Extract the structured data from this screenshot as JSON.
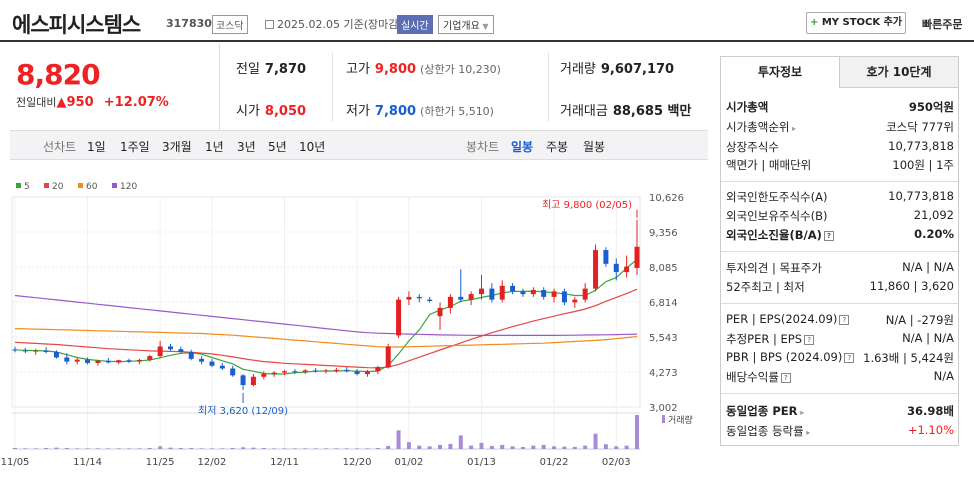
{
  "header": {
    "title": "에스피시스템스",
    "code": "317830",
    "market": "코스닥",
    "date": "2025.02.05 기준(장마감)",
    "realtime": "실시간",
    "overview": "기업개요",
    "mystock_plus": "+",
    "mystock": "MY STOCK 추가",
    "quick_order": "빠른주문"
  },
  "price": {
    "current": "8,820",
    "change_label": "전일대비",
    "change_arrow": "▲",
    "change_value": "950",
    "change_pct": "+12.07%"
  },
  "stats": {
    "prev_label": "전일",
    "prev": "7,870",
    "open_label": "시가",
    "open": "8,050",
    "high_label": "고가",
    "high": "9,800",
    "upper_limit": "(상한가 10,230)",
    "low_label": "저가",
    "low": "7,800",
    "lower_limit": "(하한가 5,510)",
    "volume_label": "거래량",
    "volume": "9,607,170",
    "amount_label": "거래대금",
    "amount": "88,685 백만"
  },
  "periods": {
    "line_label": "선차트",
    "line_items": [
      "1일",
      "1주일",
      "3개월",
      "1년",
      "3년",
      "5년",
      "10년"
    ],
    "candle_label": "봉차트",
    "candle_items": [
      "일봉",
      "주봉",
      "월봉"
    ],
    "selected": "일봉"
  },
  "colors": {
    "up": "#e22222",
    "down": "#1a5fd0",
    "ma5": "#3aa63a",
    "ma20": "#e84545",
    "ma60": "#f08c1e",
    "ma120": "#9a59c9"
  },
  "chart_data": {
    "type": "candlestick",
    "legend": [
      "5",
      "20",
      "60",
      "120"
    ],
    "y_ticks": [
      "10,626",
      "9,356",
      "8,085",
      "6,814",
      "5,543",
      "4,273",
      "3,002"
    ],
    "ylim": [
      3002,
      10626
    ],
    "x_ticks": [
      "11/05",
      "11/14",
      "11/25",
      "12/02",
      "12/11",
      "12/20",
      "01/02",
      "01/13",
      "01/22",
      "02/03"
    ],
    "high_annotation": "최고 9,800 (02/05)",
    "low_annotation": "최저 3,620 (12/09)",
    "volume_label": "거래량",
    "candles": [
      {
        "o": 5090,
        "h": 5190,
        "l": 4990,
        "c": 5060
      },
      {
        "o": 5060,
        "h": 5150,
        "l": 4960,
        "c": 5020
      },
      {
        "o": 5020,
        "h": 5120,
        "l": 4900,
        "c": 5050
      },
      {
        "o": 5050,
        "h": 5180,
        "l": 4950,
        "c": 5000
      },
      {
        "o": 5000,
        "h": 5060,
        "l": 4760,
        "c": 4800
      },
      {
        "o": 4800,
        "h": 4950,
        "l": 4550,
        "c": 4650
      },
      {
        "o": 4650,
        "h": 4800,
        "l": 4550,
        "c": 4720
      },
      {
        "o": 4720,
        "h": 4800,
        "l": 4550,
        "c": 4600
      },
      {
        "o": 4600,
        "h": 4720,
        "l": 4500,
        "c": 4680
      },
      {
        "o": 4680,
        "h": 4780,
        "l": 4580,
        "c": 4620
      },
      {
        "o": 4620,
        "h": 4720,
        "l": 4560,
        "c": 4700
      },
      {
        "o": 4700,
        "h": 4760,
        "l": 4600,
        "c": 4650
      },
      {
        "o": 4650,
        "h": 4750,
        "l": 4550,
        "c": 4710
      },
      {
        "o": 4710,
        "h": 4900,
        "l": 4650,
        "c": 4850
      },
      {
        "o": 4850,
        "h": 5400,
        "l": 4800,
        "c": 5200
      },
      {
        "o": 5200,
        "h": 5300,
        "l": 5050,
        "c": 5100
      },
      {
        "o": 5100,
        "h": 5200,
        "l": 4950,
        "c": 5000
      },
      {
        "o": 5000,
        "h": 5080,
        "l": 4700,
        "c": 4750
      },
      {
        "o": 4750,
        "h": 4850,
        "l": 4550,
        "c": 4650
      },
      {
        "o": 4650,
        "h": 4750,
        "l": 4450,
        "c": 4500
      },
      {
        "o": 4500,
        "h": 4600,
        "l": 4350,
        "c": 4400
      },
      {
        "o": 4400,
        "h": 4500,
        "l": 4100,
        "c": 4150
      },
      {
        "o": 4150,
        "h": 4200,
        "l": 3620,
        "c": 3800
      },
      {
        "o": 3800,
        "h": 4200,
        "l": 3750,
        "c": 4100
      },
      {
        "o": 4100,
        "h": 4300,
        "l": 4000,
        "c": 4200
      },
      {
        "o": 4200,
        "h": 4300,
        "l": 4100,
        "c": 4250
      },
      {
        "o": 4250,
        "h": 4350,
        "l": 4150,
        "c": 4300
      },
      {
        "o": 4300,
        "h": 4380,
        "l": 4200,
        "c": 4280
      },
      {
        "o": 4280,
        "h": 4380,
        "l": 4200,
        "c": 4330
      },
      {
        "o": 4330,
        "h": 4420,
        "l": 4250,
        "c": 4300
      },
      {
        "o": 4300,
        "h": 4380,
        "l": 4220,
        "c": 4330
      },
      {
        "o": 4330,
        "h": 4420,
        "l": 4250,
        "c": 4350
      },
      {
        "o": 4350,
        "h": 4450,
        "l": 4250,
        "c": 4300
      },
      {
        "o": 4300,
        "h": 4380,
        "l": 4150,
        "c": 4200
      },
      {
        "o": 4200,
        "h": 4350,
        "l": 4100,
        "c": 4280
      },
      {
        "o": 4300,
        "h": 4500,
        "l": 4200,
        "c": 4450
      },
      {
        "o": 4450,
        "h": 5300,
        "l": 4400,
        "c": 5200
      },
      {
        "o": 5600,
        "h": 7000,
        "l": 5500,
        "c": 6900
      },
      {
        "o": 6900,
        "h": 7200,
        "l": 6700,
        "c": 7000
      },
      {
        "o": 7000,
        "h": 7100,
        "l": 6800,
        "c": 6950
      },
      {
        "o": 6900,
        "h": 7000,
        "l": 6800,
        "c": 6850
      },
      {
        "o": 6300,
        "h": 6800,
        "l": 5800,
        "c": 6600
      },
      {
        "o": 6600,
        "h": 7100,
        "l": 6400,
        "c": 7000
      },
      {
        "o": 7000,
        "h": 8000,
        "l": 6800,
        "c": 6900
      },
      {
        "o": 6900,
        "h": 7200,
        "l": 6700,
        "c": 7100
      },
      {
        "o": 7100,
        "h": 7800,
        "l": 6900,
        "c": 7300
      },
      {
        "o": 7300,
        "h": 7500,
        "l": 6800,
        "c": 6900
      },
      {
        "o": 6900,
        "h": 7600,
        "l": 6800,
        "c": 7400
      },
      {
        "o": 7400,
        "h": 7500,
        "l": 7100,
        "c": 7200
      },
      {
        "o": 7200,
        "h": 7300,
        "l": 7000,
        "c": 7100
      },
      {
        "o": 7100,
        "h": 7350,
        "l": 7000,
        "c": 7250
      },
      {
        "o": 7250,
        "h": 7350,
        "l": 6900,
        "c": 7000
      },
      {
        "o": 7000,
        "h": 7300,
        "l": 6800,
        "c": 7200
      },
      {
        "o": 7200,
        "h": 7300,
        "l": 6700,
        "c": 6800
      },
      {
        "o": 6800,
        "h": 7000,
        "l": 6600,
        "c": 6900
      },
      {
        "o": 6900,
        "h": 7500,
        "l": 6800,
        "c": 7300
      },
      {
        "o": 7300,
        "h": 8900,
        "l": 7200,
        "c": 8700
      },
      {
        "o": 8700,
        "h": 8800,
        "l": 8100,
        "c": 8200
      },
      {
        "o": 8200,
        "h": 8400,
        "l": 7600,
        "c": 7900
      },
      {
        "o": 7900,
        "h": 8500,
        "l": 7700,
        "c": 8100
      },
      {
        "o": 8050,
        "h": 9800,
        "l": 7800,
        "c": 8820
      }
    ],
    "volumes": [
      3,
      2,
      2,
      3,
      4,
      3,
      2,
      2,
      2,
      2,
      2,
      2,
      2,
      3,
      8,
      4,
      3,
      3,
      2,
      2,
      2,
      3,
      5,
      4,
      3,
      2,
      2,
      2,
      2,
      2,
      2,
      2,
      2,
      2,
      2,
      3,
      9,
      55,
      20,
      10,
      8,
      12,
      15,
      40,
      10,
      18,
      9,
      12,
      8,
      6,
      10,
      12,
      8,
      7,
      6,
      10,
      45,
      14,
      8,
      10,
      100
    ],
    "ma": [
      {
        "name": "5",
        "values": [
          5080,
          5060,
          5050,
          5040,
          5000,
          4900,
          4800,
          4730,
          4690,
          4660,
          4650,
          4660,
          4680,
          4710,
          4790,
          4880,
          4950,
          4970,
          4920,
          4800,
          4680,
          4570,
          4370,
          4300,
          4220,
          4200,
          4200,
          4250,
          4270,
          4300,
          4310,
          4310,
          4320,
          4300,
          4290,
          4310,
          4510,
          4930,
          5400,
          5800,
          6360,
          6520,
          6650,
          6840,
          6900,
          6980,
          7050,
          7140,
          7200,
          7200,
          7210,
          7180,
          7150,
          7110,
          7050,
          7050,
          7240,
          7550,
          7700,
          8050,
          8360
        ]
      },
      {
        "name": "20",
        "values": [
          5350,
          5330,
          5310,
          5290,
          5270,
          5240,
          5210,
          5180,
          5150,
          5120,
          5100,
          5080,
          5060,
          5040,
          5030,
          5020,
          5010,
          4990,
          4960,
          4930,
          4880,
          4820,
          4760,
          4700,
          4650,
          4620,
          4590,
          4570,
          4550,
          4530,
          4510,
          4490,
          4470,
          4450,
          4430,
          4420,
          4450,
          4550,
          4680,
          4810,
          4940,
          5070,
          5200,
          5330,
          5460,
          5580,
          5700,
          5810,
          5920,
          6020,
          6120,
          6210,
          6300,
          6390,
          6470,
          6560,
          6680,
          6840,
          6980,
          7120,
          7280
        ]
      },
      {
        "name": "60",
        "values": [
          5850,
          5840,
          5830,
          5820,
          5810,
          5800,
          5790,
          5780,
          5770,
          5760,
          5750,
          5740,
          5730,
          5720,
          5710,
          5700,
          5690,
          5680,
          5670,
          5650,
          5630,
          5610,
          5580,
          5550,
          5520,
          5490,
          5460,
          5430,
          5400,
          5370,
          5340,
          5310,
          5280,
          5250,
          5220,
          5190,
          5180,
          5180,
          5190,
          5200,
          5210,
          5220,
          5230,
          5240,
          5250,
          5260,
          5270,
          5280,
          5290,
          5300,
          5310,
          5320,
          5340,
          5360,
          5380,
          5400,
          5420,
          5450,
          5480,
          5520,
          5560
        ]
      },
      {
        "name": "120",
        "values": [
          7050,
          7010,
          6970,
          6930,
          6890,
          6850,
          6810,
          6770,
          6730,
          6690,
          6650,
          6610,
          6570,
          6530,
          6490,
          6450,
          6410,
          6370,
          6330,
          6290,
          6250,
          6210,
          6170,
          6130,
          6090,
          6050,
          6010,
          5970,
          5930,
          5890,
          5850,
          5810,
          5770,
          5730,
          5700,
          5680,
          5670,
          5660,
          5650,
          5640,
          5630,
          5620,
          5615,
          5610,
          5605,
          5600,
          5600,
          5600,
          5600,
          5600,
          5600,
          5600,
          5600,
          5605,
          5610,
          5615,
          5620,
          5625,
          5630,
          5640,
          5650
        ]
      }
    ]
  },
  "panel": {
    "tab_active": "투자정보",
    "tab_inactive": "호가 10단계",
    "market_cap_label": "시가총액",
    "market_cap": "950억원",
    "rank_label": "시가총액순위",
    "rank": "코스닥 777위",
    "shares_label": "상장주식수",
    "shares": "10,773,818",
    "par_label": "액면가 | 매매단위",
    "par": "100원 | 1주",
    "foreign_limit_label": "외국인한도주식수(A)",
    "foreign_limit": "10,773,818",
    "foreign_hold_label": "외국인보유주식수(B)",
    "foreign_hold": "21,092",
    "foreign_ratio_label": "외국인소진율(B/A)",
    "foreign_ratio": "0.20%",
    "opinion_label": "투자의견 | 목표주가",
    "opinion": "N/A | N/A",
    "week52_label": "52주최고 | 최저",
    "week52": "11,860 | 3,620",
    "per_label": "PER | EPS(2024.09)",
    "per": "N/A | -279원",
    "est_label": "추정PER | EPS",
    "est": "N/A | N/A",
    "pbr_label": "PBR | BPS (2024.09)",
    "pbr": "1.63배 | 5,424원",
    "div_label": "배당수익률",
    "div": "N/A",
    "ind_per_label": "동일업종 PER",
    "ind_per": "36.98배",
    "ind_rate_label": "동일업종 등락률",
    "ind_rate": "+1.10%"
  }
}
